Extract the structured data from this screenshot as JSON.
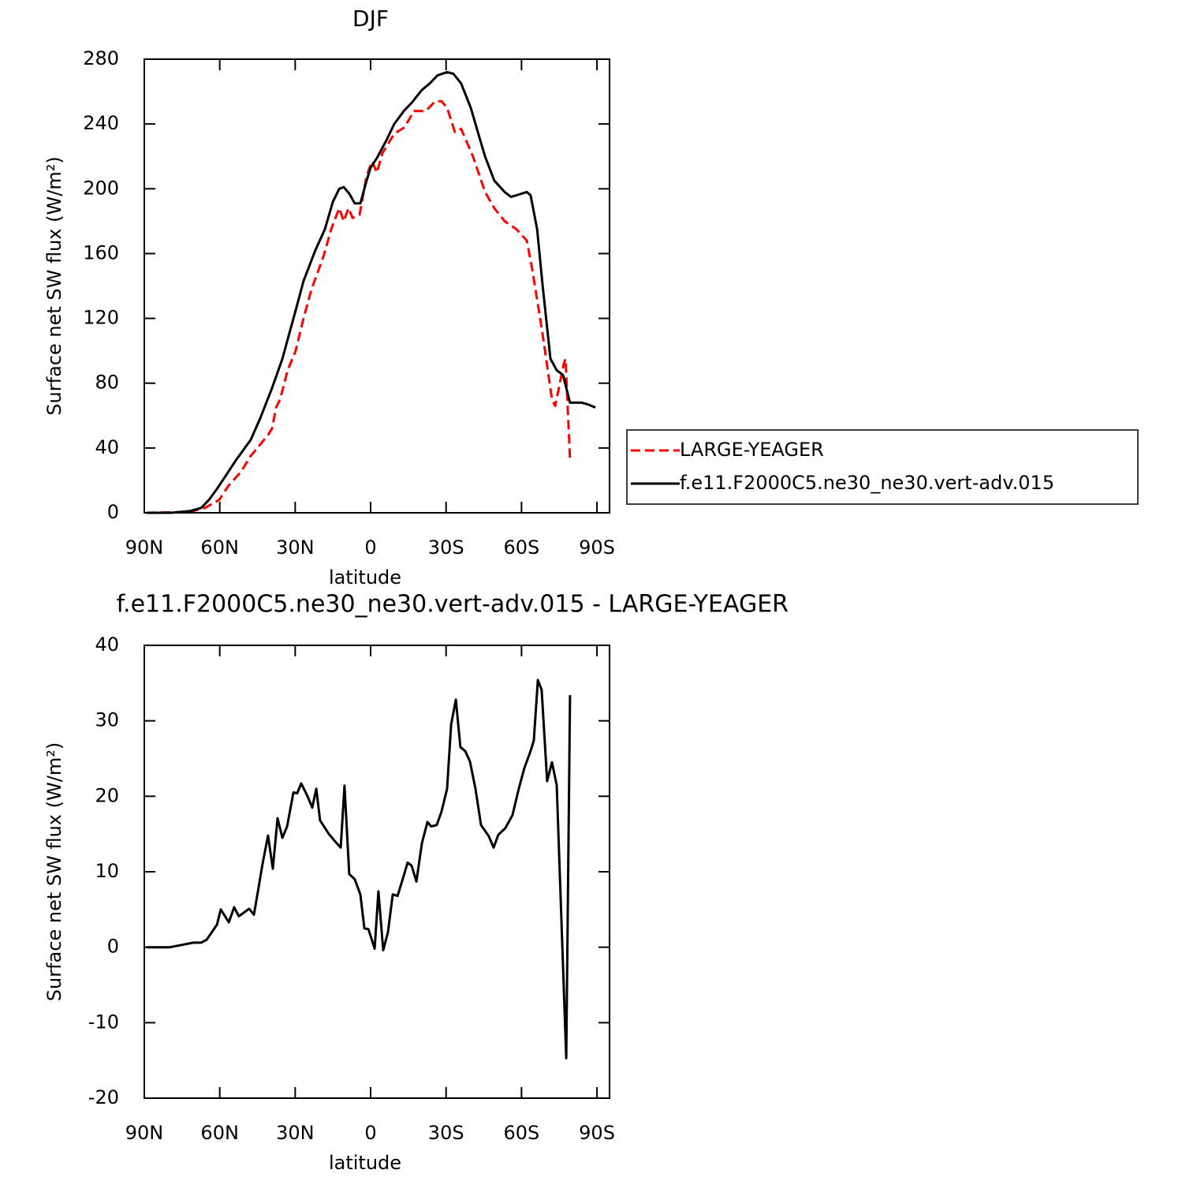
{
  "chart_data": [
    {
      "type": "line",
      "title": "DJF",
      "xlabel": "latitude",
      "ylabel": "Surface net SW flux (W/m²)",
      "xlim": [
        90,
        -95
      ],
      "xticks": [
        {
          "value": 90,
          "label": "90N"
        },
        {
          "value": 60,
          "label": "60N"
        },
        {
          "value": 30,
          "label": "30N"
        },
        0,
        {
          "value": -30,
          "label": "30S"
        },
        {
          "value": -60,
          "label": "60S"
        },
        {
          "value": -90,
          "label": "90S"
        }
      ],
      "ylim": [
        0,
        280
      ],
      "yticks": [
        0,
        40,
        80,
        120,
        160,
        200,
        240,
        280
      ],
      "legend": "right",
      "series": [
        {
          "name": "LARGE-YEAGER",
          "color": "#ff0000",
          "style": "dashed",
          "x": [
            89,
            72,
            65.9,
            60.2,
            56.4,
            51.7,
            47.7,
            40.8,
            39.2,
            37.6,
            36,
            33,
            29.8,
            26.7,
            23.5,
            18.8,
            15.7,
            12.5,
            10.7,
            8.8,
            7.2,
            4.4,
            1.6,
            -0.6,
            -2.5,
            -4.7,
            -9.4,
            -13.5,
            -17.2,
            -21.9,
            -25.7,
            -28.2,
            -30.4,
            -33.5,
            -36,
            -40.7,
            -45.5,
            -49.2,
            -53.3,
            -58,
            -62.1,
            -64.3,
            -68.4,
            -72.1,
            -73.4,
            -76.8,
            -77.5,
            -79.3
          ],
          "values": [
            0,
            0.5,
            3,
            8,
            17,
            25,
            35,
            48,
            52,
            65,
            70,
            88,
            100,
            120,
            138,
            158,
            175,
            188,
            180,
            188,
            182,
            184,
            208,
            217,
            210,
            222,
            234,
            238,
            248,
            248,
            254,
            254,
            250,
            235,
            237,
            220,
            198,
            188,
            180,
            175,
            168,
            150,
            110,
            70,
            66,
            92,
            95,
            33
          ]
        },
        {
          "name": "f.e11.F2000C5.ne30_ne30.vert-adv.015",
          "color": "#000000",
          "style": "solid",
          "x": [
            89,
            79.3,
            72,
            67.4,
            64.3,
            61,
            58,
            53.3,
            47.7,
            44,
            39.2,
            35.1,
            33,
            29.8,
            26.7,
            22,
            18.2,
            15,
            12.5,
            10.7,
            8.5,
            6.3,
            4.1,
            1.6,
            0,
            -2.5,
            -6.3,
            -9.4,
            -13.2,
            -16.3,
            -20.4,
            -23.5,
            -26.6,
            -30.4,
            -32.9,
            -36,
            -39.8,
            -43,
            -45.5,
            -49.2,
            -53.3,
            -55.8,
            -58,
            -62.1,
            -63.6,
            -66.2,
            -68.4,
            -71.5,
            -74,
            -76.5,
            -79.3,
            -84,
            -86.2,
            -89.4
          ],
          "values": [
            0,
            0,
            1,
            3,
            8,
            15,
            22,
            33,
            45,
            58,
            77,
            95,
            107,
            125,
            143,
            162,
            175,
            192,
            200,
            201,
            197,
            191,
            191,
            205,
            213,
            219,
            230,
            240,
            248,
            253,
            261,
            265,
            270,
            272,
            271,
            265,
            250,
            233,
            220,
            205,
            198,
            195,
            196,
            198,
            196,
            175,
            140,
            95,
            88,
            85,
            68,
            68,
            67,
            65
          ]
        }
      ]
    },
    {
      "type": "line",
      "title": "f.e11.F2000C5.ne30_ne30.vert-adv.015 - LARGE-YEAGER",
      "xlabel": "latitude",
      "ylabel": "Surface net SW flux (W/m²)",
      "xlim": [
        90,
        -95
      ],
      "xticks": [
        {
          "value": 90,
          "label": "90N"
        },
        {
          "value": 60,
          "label": "60N"
        },
        {
          "value": 30,
          "label": "30N"
        },
        0,
        {
          "value": -30,
          "label": "30S"
        },
        {
          "value": -60,
          "label": "60S"
        },
        {
          "value": -90,
          "label": "90S"
        }
      ],
      "ylim": [
        -20,
        40
      ],
      "yticks": [
        -20,
        -10,
        0,
        10,
        20,
        30,
        40
      ],
      "color": "#000000",
      "x": [
        89,
        79.9,
        75.2,
        70.5,
        67.4,
        65.2,
        61.1,
        59.6,
        56.4,
        54.3,
        52.4,
        48.3,
        46.4,
        44.5,
        43,
        40.8,
        38.9,
        37,
        35.1,
        33.2,
        30.7,
        29.2,
        27.6,
        25.1,
        23.2,
        21.6,
        20.1,
        16.6,
        14.1,
        11.9,
        10.4,
        8.5,
        6.3,
        4.1,
        2.5,
        0.9,
        -1.6,
        -3.1,
        -5,
        -6.9,
        -8.8,
        -10.7,
        -13.2,
        -14.7,
        -16.3,
        -18.2,
        -20.4,
        -22.6,
        -24.1,
        -26.3,
        -28.2,
        -30.4,
        -32,
        -33.9,
        -35.7,
        -37.6,
        -39.5,
        -41.7,
        -43.9,
        -47,
        -48.9,
        -50.8,
        -53.6,
        -56.4,
        -58.9,
        -61.1,
        -63.6,
        -64.9,
        -66.5,
        -68,
        -70.2,
        -72.1,
        -74,
        -77.8,
        -79.3
      ],
      "values": [
        0,
        0,
        0.3,
        0.6,
        0.6,
        1,
        3,
        5,
        3.3,
        5.3,
        4.1,
        5.1,
        4.3,
        8,
        11,
        14.8,
        10.4,
        17.1,
        14.5,
        16,
        20.5,
        20.4,
        21.7,
        20,
        18.5,
        21,
        16.8,
        15,
        14,
        13.2,
        21.4,
        9.7,
        9,
        7,
        2.5,
        2.4,
        -0.2,
        7.4,
        -0.4,
        2,
        7,
        6.8,
        9.5,
        11.2,
        10.8,
        8.7,
        13.8,
        16.6,
        16,
        16.2,
        18,
        21,
        29.5,
        32.8,
        26.5,
        26,
        24.6,
        21,
        16.2,
        14.7,
        13.2,
        14.9,
        15.8,
        17.5,
        21,
        23.7,
        26,
        27.4,
        35.4,
        34.1,
        22,
        24.5,
        21.5,
        -14.7,
        33.4
      ]
    }
  ]
}
